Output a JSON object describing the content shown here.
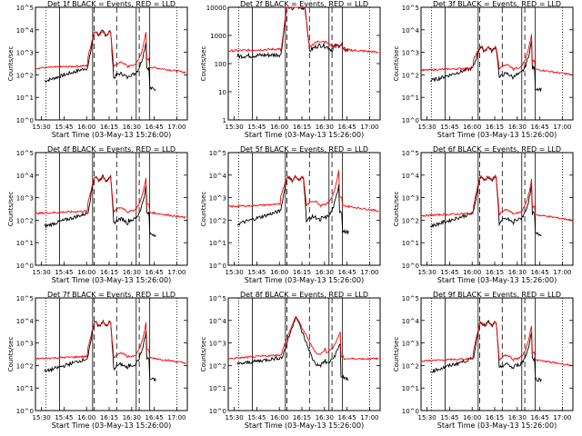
{
  "chart_data": [
    {
      "type": "line",
      "title": "Det 1f BLACK = Events, RED = LLD",
      "xlabel": "Start Time (03-May-13 15:26:00)",
      "ylabel": "Counts/sec",
      "x_ticks": [
        "15:30",
        "15:45",
        "16:00",
        "16:15",
        "16:30",
        "16:45",
        "17:00"
      ],
      "y_ticks": [
        "10^0",
        "10^1",
        "10^2",
        "10^3",
        "10^4",
        "10^5"
      ],
      "y_scale": "log",
      "ylim": [
        1,
        100000
      ],
      "series": [
        {
          "color": "#000000",
          "shape": "std",
          "peak": 3.9,
          "base": 1.9
        },
        {
          "color": "#ff0000",
          "shape": "std",
          "peak": 3.9,
          "base": 2.3
        }
      ]
    },
    {
      "type": "line",
      "title": "Det 2f BLACK = Events, RED = LLD",
      "xlabel": "Start Time (03-May-13 15:26:00)",
      "ylabel": "Counts/sec",
      "x_ticks": [
        "15:30",
        "15:45",
        "16:00",
        "16:15",
        "16:30",
        "16:45",
        "17:00"
      ],
      "y_ticks": [
        "1",
        "10",
        "100",
        "1000",
        "10000"
      ],
      "y_scale": "log",
      "ylim": [
        1,
        10000
      ],
      "series": [
        {
          "color": "#000000",
          "shape": "det2",
          "peak": 4.0,
          "base": 2.3
        },
        {
          "color": "#ff0000",
          "shape": "det2",
          "peak": 4.05,
          "base": 2.4
        }
      ]
    },
    {
      "type": "line",
      "title": "Det 3f BLACK = Events, RED = LLD",
      "xlabel": "Start Time (03-May-13 15:26:00)",
      "ylabel": "Counts/sec",
      "x_ticks": [
        "15:30",
        "15:45",
        "16:00",
        "16:15",
        "16:30",
        "16:45",
        "17:00"
      ],
      "y_ticks": [
        "10^0",
        "10^1",
        "10^2",
        "10^3",
        "10^4",
        "10^5"
      ],
      "y_scale": "log",
      "ylim": [
        1,
        100000
      ],
      "series": [
        {
          "color": "#000000",
          "shape": "std",
          "peak": 3.2,
          "base": 1.9
        },
        {
          "color": "#ff0000",
          "shape": "std",
          "peak": 3.2,
          "base": 2.2
        }
      ]
    },
    {
      "type": "line",
      "title": "Det 4f BLACK = Events, RED = LLD",
      "xlabel": "Start Time (03-May-13 15:26:00)",
      "ylabel": "Counts/sec",
      "x_ticks": [
        "15:30",
        "15:45",
        "16:00",
        "16:15",
        "16:30",
        "16:45",
        "17:00"
      ],
      "y_ticks": [
        "10^0",
        "10^1",
        "10^2",
        "10^3",
        "10^4",
        "10^5"
      ],
      "y_scale": "log",
      "ylim": [
        1,
        100000
      ],
      "series": [
        {
          "color": "#000000",
          "shape": "std",
          "peak": 3.9,
          "base": 1.9
        },
        {
          "color": "#ff0000",
          "shape": "std",
          "peak": 3.9,
          "base": 2.3
        }
      ]
    },
    {
      "type": "line",
      "title": "Det 5f BLACK = Events, RED = LLD",
      "xlabel": "Start Time (03-May-13 15:26:00)",
      "ylabel": "Counts/sec",
      "x_ticks": [
        "15:30",
        "15:45",
        "16:00",
        "16:15",
        "16:30",
        "16:45",
        "17:00"
      ],
      "y_ticks": [
        "10^0",
        "10^1",
        "10^2",
        "10^3",
        "10^4",
        "10^5"
      ],
      "y_scale": "log",
      "ylim": [
        1,
        100000
      ],
      "series": [
        {
          "color": "#000000",
          "shape": "std",
          "peak": 3.9,
          "base": 2.0
        },
        {
          "color": "#ff0000",
          "shape": "std",
          "peak": 3.9,
          "base": 2.6
        }
      ]
    },
    {
      "type": "line",
      "title": "Det 6f BLACK = Events, RED = LLD",
      "xlabel": "Start Time (03-May-13 15:26:00)",
      "ylabel": "Counts/sec",
      "x_ticks": [
        "15:30",
        "15:45",
        "16:00",
        "16:15",
        "16:30",
        "16:45",
        "17:00"
      ],
      "y_ticks": [
        "10^0",
        "10^1",
        "10^2",
        "10^3",
        "10^4",
        "10^5"
      ],
      "y_scale": "log",
      "ylim": [
        1,
        100000
      ],
      "series": [
        {
          "color": "#000000",
          "shape": "std",
          "peak": 3.9,
          "base": 1.9
        },
        {
          "color": "#ff0000",
          "shape": "std",
          "peak": 3.9,
          "base": 2.2
        }
      ]
    },
    {
      "type": "line",
      "title": "Det 7f BLACK = Events, RED = LLD",
      "xlabel": "Start Time (03-May-13 15:26:00)",
      "ylabel": "Counts/sec",
      "x_ticks": [
        "15:30",
        "15:45",
        "16:00",
        "16:15",
        "16:30",
        "16:45",
        "17:00"
      ],
      "y_ticks": [
        "10^0",
        "10^1",
        "10^2",
        "10^3",
        "10^4",
        "10^5"
      ],
      "y_scale": "log",
      "ylim": [
        1,
        100000
      ],
      "series": [
        {
          "color": "#000000",
          "shape": "std",
          "peak": 3.9,
          "base": 1.9
        },
        {
          "color": "#ff0000",
          "shape": "std",
          "peak": 3.9,
          "base": 2.3
        }
      ]
    },
    {
      "type": "line",
      "title": "Det 8f BLACK = Events, RED = LLD",
      "xlabel": "Start Time (03-May-13 15:26:00)",
      "ylabel": "Counts/sec",
      "x_ticks": [
        "15:30",
        "15:45",
        "16:00",
        "16:15",
        "16:30",
        "16:45",
        "17:00"
      ],
      "y_ticks": [
        "10^0",
        "10^1",
        "10^2",
        "10^3",
        "10^4",
        "10^5"
      ],
      "y_scale": "log",
      "ylim": [
        1,
        100000
      ],
      "series": [
        {
          "color": "#000000",
          "shape": "det8",
          "peak": 4.2,
          "base": 2.0
        },
        {
          "color": "#ff0000",
          "shape": "det8",
          "peak": 4.2,
          "base": 2.3
        }
      ]
    },
    {
      "type": "line",
      "title": "Det 9f BLACK = Events, RED = LLD",
      "xlabel": "Start Time (03-May-13 15:26:00)",
      "ylabel": "Counts/sec",
      "x_ticks": [
        "15:30",
        "15:45",
        "16:00",
        "16:15",
        "16:30",
        "16:45",
        "17:00"
      ],
      "y_ticks": [
        "10^0",
        "10^1",
        "10^2",
        "10^3",
        "10^4",
        "10^5"
      ],
      "y_scale": "log",
      "ylim": [
        1,
        100000
      ],
      "series": [
        {
          "color": "#000000",
          "shape": "std",
          "peak": 3.9,
          "base": 1.9
        },
        {
          "color": "#ff0000",
          "shape": "std",
          "peak": 3.9,
          "base": 2.2
        }
      ]
    }
  ],
  "markers": {
    "solid_times": [
      "15:42",
      "16:04",
      "16:33",
      "16:42"
    ],
    "dashed_times": [
      "16:05",
      "16:20",
      "16:35"
    ],
    "dotted_times": [
      "15:33",
      "17:00"
    ]
  }
}
